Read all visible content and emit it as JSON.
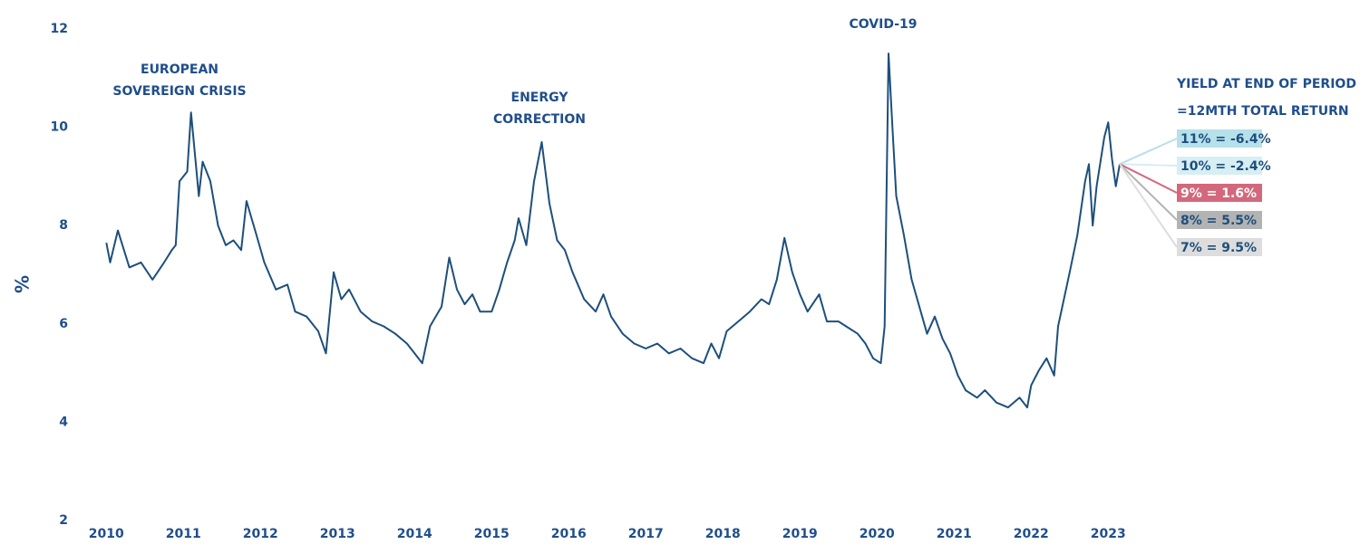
{
  "chart_data": {
    "type": "line",
    "y_label": "%",
    "annotations": [
      [
        "EUROPEAN",
        "SOVEREIGN CRISIS"
      ],
      [
        "ENERGY",
        "CORRECTION"
      ],
      [
        "COVID-19"
      ]
    ],
    "legend_title": [
      "YIELD AT END OF PERIOD",
      "=12MTH TOTAL RETURN"
    ],
    "scenarios": [
      {
        "label": "11% = -6.4%",
        "color": "#b6e0ea",
        "text_color": "#1d4f7c"
      },
      {
        "label": "10% = -2.4%",
        "color": "#d6eef4",
        "text_color": "#1d4f7c"
      },
      {
        "label": "9% = 1.6%",
        "color": "#d3687d",
        "text_color": "#ffffff"
      },
      {
        "label": "8% = 5.5%",
        "color": "#b3b3b3",
        "text_color": "#1d4f7c"
      },
      {
        "label": "7% = 9.5%",
        "color": "#dddddd",
        "text_color": "#1d4f7c"
      }
    ],
    "xlim": [
      2009.75,
      2023.5
    ],
    "xticks": [
      2010,
      2011,
      2012,
      2013,
      2014,
      2015,
      2016,
      2017,
      2018,
      2019,
      2020,
      2021,
      2022,
      2023
    ],
    "ylim": [
      2,
      12
    ],
    "yticks": [
      2,
      4,
      6,
      8,
      10,
      12
    ],
    "series": [
      {
        "color": "#1d4f7c",
        "x": [
          2010.0,
          2010.05,
          2010.15,
          2010.3,
          2010.45,
          2010.6,
          2010.75,
          2010.85,
          2010.9,
          2010.95,
          2011.05,
          2011.1,
          2011.15,
          2011.2,
          2011.25,
          2011.35,
          2011.45,
          2011.55,
          2011.65,
          2011.75,
          2011.82,
          2011.95,
          2012.05,
          2012.2,
          2012.35,
          2012.45,
          2012.6,
          2012.75,
          2012.85,
          2012.95,
          2013.05,
          2013.15,
          2013.3,
          2013.45,
          2013.6,
          2013.75,
          2013.9,
          2014.0,
          2014.1,
          2014.2,
          2014.35,
          2014.45,
          2014.55,
          2014.65,
          2014.75,
          2014.85,
          2015.0,
          2015.1,
          2015.2,
          2015.3,
          2015.35,
          2015.45,
          2015.55,
          2015.65,
          2015.75,
          2015.85,
          2015.95,
          2016.05,
          2016.2,
          2016.35,
          2016.45,
          2016.55,
          2016.7,
          2016.85,
          2017.0,
          2017.15,
          2017.3,
          2017.45,
          2017.6,
          2017.75,
          2017.85,
          2017.95,
          2018.05,
          2018.2,
          2018.35,
          2018.5,
          2018.6,
          2018.7,
          2018.8,
          2018.9,
          2019.0,
          2019.1,
          2019.25,
          2019.35,
          2019.5,
          2019.6,
          2019.75,
          2019.85,
          2019.95,
          2020.05,
          2020.1,
          2020.15,
          2020.2,
          2020.25,
          2020.35,
          2020.45,
          2020.55,
          2020.65,
          2020.75,
          2020.85,
          2020.95,
          2021.05,
          2021.15,
          2021.3,
          2021.4,
          2021.55,
          2021.7,
          2021.85,
          2021.95,
          2022.0,
          2022.1,
          2022.2,
          2022.3,
          2022.35,
          2022.5,
          2022.6,
          2022.7,
          2022.75,
          2022.8,
          2022.85,
          2022.95,
          2023.0,
          2023.05,
          2023.1,
          2023.15
        ],
        "values": [
          7.65,
          7.25,
          7.9,
          7.15,
          7.25,
          6.9,
          7.25,
          7.5,
          7.6,
          8.9,
          9.1,
          10.3,
          9.45,
          8.6,
          9.3,
          8.9,
          8.0,
          7.6,
          7.7,
          7.5,
          8.5,
          7.8,
          7.25,
          6.7,
          6.8,
          6.25,
          6.15,
          5.85,
          5.4,
          7.05,
          6.5,
          6.7,
          6.25,
          6.05,
          5.95,
          5.8,
          5.6,
          5.4,
          5.2,
          5.95,
          6.35,
          7.35,
          6.7,
          6.4,
          6.6,
          6.25,
          6.25,
          6.7,
          7.25,
          7.7,
          8.15,
          7.6,
          8.9,
          9.7,
          8.45,
          7.7,
          7.5,
          7.05,
          6.5,
          6.25,
          6.6,
          6.15,
          5.8,
          5.6,
          5.5,
          5.6,
          5.4,
          5.5,
          5.3,
          5.2,
          5.6,
          5.3,
          5.85,
          6.05,
          6.25,
          6.5,
          6.4,
          6.9,
          7.75,
          7.05,
          6.6,
          6.25,
          6.6,
          6.05,
          6.05,
          5.95,
          5.8,
          5.6,
          5.3,
          5.2,
          5.95,
          11.5,
          10.0,
          8.6,
          7.8,
          6.9,
          6.35,
          5.8,
          6.15,
          5.7,
          5.4,
          4.95,
          4.65,
          4.5,
          4.65,
          4.4,
          4.3,
          4.5,
          4.3,
          4.75,
          5.05,
          5.3,
          4.95,
          5.95,
          7.05,
          7.8,
          8.9,
          9.25,
          8.0,
          8.8,
          9.8,
          10.1,
          9.35,
          8.8,
          9.25
        ]
      }
    ]
  }
}
